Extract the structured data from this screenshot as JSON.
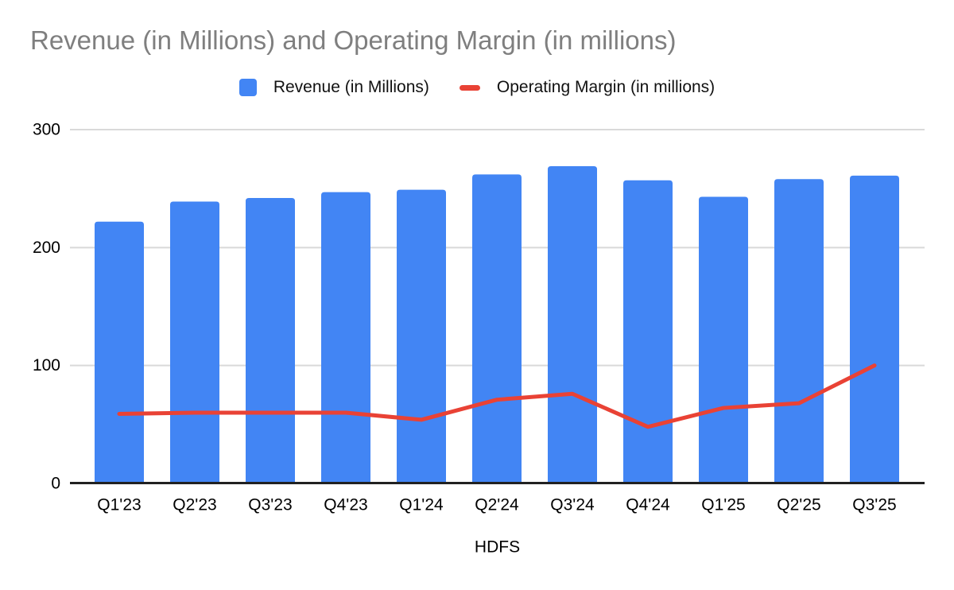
{
  "chart_data": {
    "type": "combo-bar-line",
    "title": "Revenue (in Millions) and Operating Margin (in millions)",
    "xlabel": "HDFS",
    "ylabel": "",
    "categories": [
      "Q1'23",
      "Q2'23",
      "Q3'23",
      "Q4'23",
      "Q1'24",
      "Q2'24",
      "Q3'24",
      "Q4'24",
      "Q1'25",
      "Q2'25",
      "Q3'25"
    ],
    "series": [
      {
        "name": "Revenue (in Millions)",
        "type": "bar",
        "color": "#4285F4",
        "values": [
          222,
          239,
          242,
          247,
          249,
          262,
          269,
          257,
          243,
          258,
          261
        ]
      },
      {
        "name": "Operating Margin (in millions)",
        "type": "line",
        "color": "#E94235",
        "values": [
          59,
          60,
          60,
          60,
          54,
          71,
          76,
          48,
          64,
          68,
          100
        ]
      }
    ],
    "yticks": [
      0,
      100,
      200,
      300
    ],
    "ylim": [
      0,
      300
    ],
    "grid": true,
    "legend_position": "top"
  },
  "colors": {
    "bar": "#4285F4",
    "line": "#E94235",
    "title_text": "#7F7F7F",
    "tick_text": "#000000",
    "legend_text": "#111111",
    "gridline": "#D9D9D9",
    "axis_line": "#212121",
    "background": "#FFFFFF"
  }
}
